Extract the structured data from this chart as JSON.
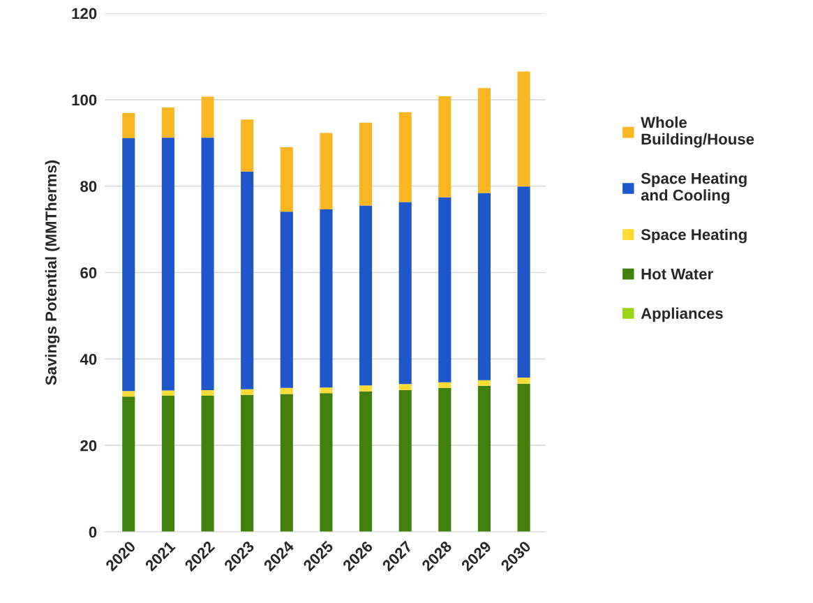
{
  "chart_data": {
    "type": "bar",
    "stacked": true,
    "ylabel": "Savings Potential (MMTherms)",
    "categories": [
      "2020",
      "2021",
      "2022",
      "2023",
      "2024",
      "2025",
      "2026",
      "2027",
      "2028",
      "2029",
      "2030"
    ],
    "series": [
      {
        "name": "Appliances",
        "color": "#99d61a",
        "values": [
          0,
          0,
          0,
          0,
          0,
          0,
          0,
          0,
          0,
          0,
          0
        ]
      },
      {
        "name": "Hot Water",
        "color": "#41800c",
        "values": [
          31.3,
          31.5,
          31.5,
          31.7,
          31.9,
          32.1,
          32.5,
          32.8,
          33.3,
          33.8,
          34.3
        ]
      },
      {
        "name": "Space Heating",
        "color": "#fbdc35",
        "values": [
          1.3,
          1.2,
          1.3,
          1.3,
          1.4,
          1.3,
          1.4,
          1.4,
          1.3,
          1.3,
          1.4
        ]
      },
      {
        "name": "Space Heating\nand Cooling",
        "color": "#1f56c9",
        "values": [
          58.5,
          58.5,
          58.4,
          50.4,
          40.8,
          41.2,
          41.6,
          42.1,
          42.8,
          43.3,
          44.2
        ]
      },
      {
        "name": "Whole\nBuilding/House",
        "color": "#f8b623",
        "values": [
          5.8,
          7.0,
          9.5,
          12.0,
          14.9,
          17.7,
          19.2,
          20.8,
          23.4,
          24.3,
          26.6
        ]
      }
    ],
    "ylim": [
      0,
      120
    ],
    "yticks": [
      0,
      20,
      40,
      60,
      80,
      100,
      120
    ],
    "grid": "y",
    "legend": "right"
  }
}
